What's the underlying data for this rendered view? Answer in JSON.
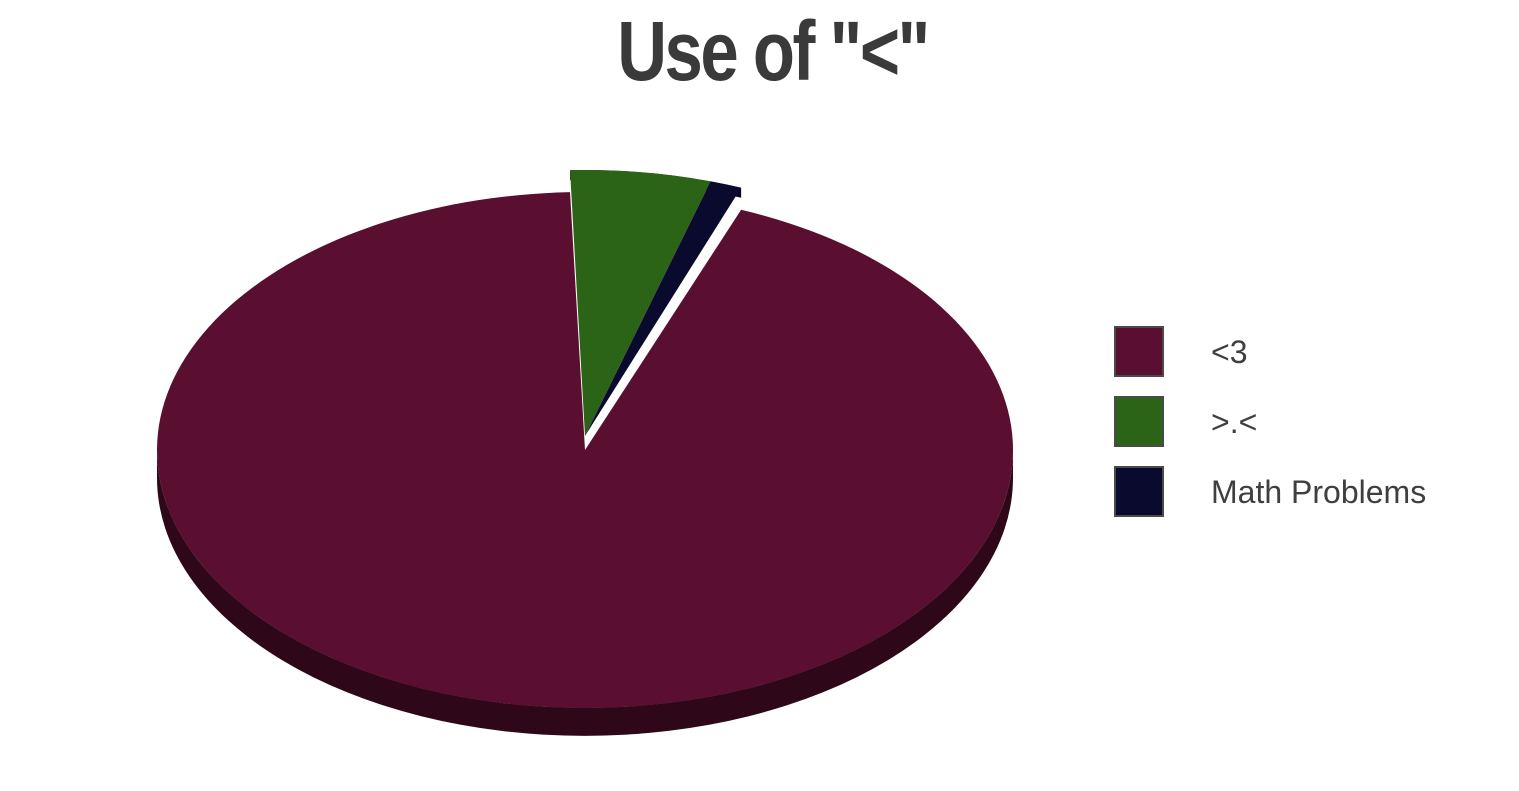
{
  "chart_data": {
    "type": "pie",
    "title": "Use of \"<\"",
    "slices": [
      {
        "label": "<3",
        "value": 93.5,
        "color": "#5b0f30"
      },
      {
        "label": ">.<",
        "value": 5.3,
        "color": "#2b6317"
      },
      {
        "label": "Math Problems",
        "value": 1.2,
        "color": "#0a0a2e"
      }
    ],
    "legend_position": "right",
    "style": "3d"
  }
}
